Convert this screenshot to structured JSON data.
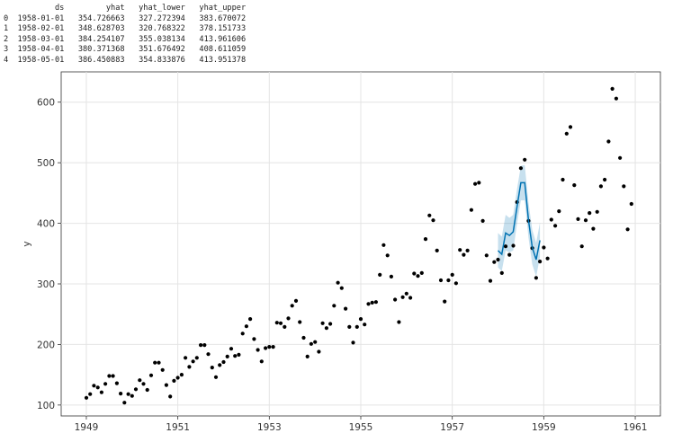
{
  "forecast_table": {
    "index_header": "",
    "columns": [
      "ds",
      "yhat",
      "yhat_lower",
      "yhat_upper"
    ],
    "rows": [
      {
        "index": "0",
        "ds": "1958-01-01",
        "yhat": "354.726663",
        "yhat_lower": "327.272394",
        "yhat_upper": "383.670072"
      },
      {
        "index": "1",
        "ds": "1958-02-01",
        "yhat": "348.628703",
        "yhat_lower": "320.768322",
        "yhat_upper": "378.151733"
      },
      {
        "index": "2",
        "ds": "1958-03-01",
        "yhat": "384.254107",
        "yhat_lower": "355.038134",
        "yhat_upper": "413.961606"
      },
      {
        "index": "3",
        "ds": "1958-04-01",
        "yhat": "380.371368",
        "yhat_lower": "351.676492",
        "yhat_upper": "408.611059"
      },
      {
        "index": "4",
        "ds": "1958-05-01",
        "yhat": "386.450883",
        "yhat_lower": "354.833876",
        "yhat_upper": "413.951378"
      }
    ]
  },
  "chart_data": {
    "type": "scatter",
    "title": "",
    "xlabel": "",
    "ylabel": "y",
    "x_ticks": [
      "1949",
      "1951",
      "1953",
      "1955",
      "1957",
      "1959",
      "1961"
    ],
    "y_ticks": [
      100,
      200,
      300,
      400,
      500,
      600
    ],
    "xlim": [
      1948.45,
      1961.55
    ],
    "ylim": [
      82,
      650
    ],
    "grid": true,
    "colors": {
      "points": "#000000",
      "forecast_line": "#0072B2",
      "interval_fill": "#0072B2"
    },
    "series": [
      {
        "kind": "observed",
        "x_start": 1949.0,
        "step": 0.0833333,
        "y": [
          112,
          118,
          132,
          129,
          121,
          135,
          148,
          148,
          136,
          119,
          104,
          118,
          115,
          126,
          141,
          135,
          125,
          149,
          170,
          170,
          158,
          133,
          114,
          140,
          145,
          150,
          178,
          163,
          172,
          178,
          199,
          199,
          184,
          162,
          146,
          166,
          171,
          180,
          193,
          181,
          183,
          218,
          230,
          242,
          209,
          191,
          172,
          194,
          196,
          196,
          236,
          235,
          229,
          243,
          264,
          272,
          237,
          211,
          180,
          201,
          204,
          188,
          235,
          227,
          234,
          264,
          302,
          293,
          259,
          229,
          203,
          229,
          242,
          233,
          267,
          269,
          270,
          315,
          364,
          347,
          312,
          274,
          237,
          278,
          284,
          277,
          317,
          313,
          318,
          374,
          413,
          405,
          355,
          306,
          271,
          306,
          315,
          301,
          356,
          348,
          355,
          422,
          465,
          467,
          404,
          347,
          305,
          336,
          340,
          318,
          362,
          348,
          363,
          435,
          491,
          505,
          404,
          359,
          310,
          337,
          360,
          342,
          406,
          396,
          420,
          472,
          548,
          559,
          463,
          407,
          362,
          405,
          417,
          391,
          419,
          461,
          472,
          535,
          622,
          606,
          508,
          461,
          390,
          432
        ]
      },
      {
        "kind": "forecast",
        "x": [
          1958.0,
          1958.083,
          1958.167,
          1958.25,
          1958.333,
          1958.417,
          1958.5,
          1958.583,
          1958.667,
          1958.75,
          1958.833,
          1958.917
        ],
        "yhat": [
          355,
          349,
          384,
          380,
          386,
          428,
          467,
          467,
          405,
          360,
          340,
          372
        ],
        "lower": [
          327,
          321,
          355,
          352,
          355,
          400,
          438,
          438,
          376,
          332,
          312,
          344
        ],
        "upper": [
          384,
          378,
          414,
          409,
          414,
          457,
          495,
          496,
          434,
          389,
          368,
          401
        ]
      }
    ]
  }
}
